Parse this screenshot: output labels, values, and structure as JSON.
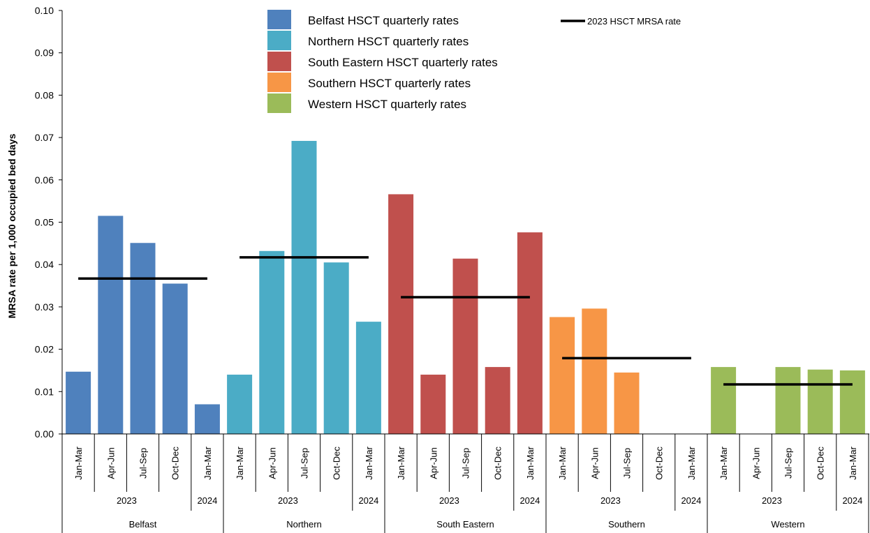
{
  "chart_data": {
    "type": "bar",
    "ylabel": "MRSA rate per 1,000 occupied bed days",
    "ylim": [
      0,
      0.1
    ],
    "yticks": [
      "0.00",
      "0.01",
      "0.02",
      "0.03",
      "0.04",
      "0.05",
      "0.06",
      "0.07",
      "0.08",
      "0.09",
      "0.10"
    ],
    "grid": false,
    "legend_position": "top-center",
    "legend": [
      {
        "label": "Belfast  HSCT quarterly rates",
        "color": "#4F81BD"
      },
      {
        "label": "Northern  HSCT quarterly rates",
        "color": "#4BACC6"
      },
      {
        "label": "South  Eastern HSCT quarterly rates",
        "color": "#C0504D"
      },
      {
        "label": "Southern  HSCT quarterly rates",
        "color": "#F79646"
      },
      {
        "label": " Western HSCT quarterly rates",
        "color": "#9BBB59"
      }
    ],
    "line_legend": "2023 HSCT MRSA rate",
    "line_color": "#000000",
    "quarters": [
      "Jan-Mar",
      "Apr-Jun",
      "Jul-Sep",
      "Oct-Dec",
      "Jan-Mar"
    ],
    "year_labels": [
      "2023",
      "2024"
    ],
    "groups": [
      {
        "name": "Belfast",
        "color": "#4F81BD",
        "values": [
          0.0147,
          0.0515,
          0.0451,
          0.0355,
          0.007
        ],
        "annual_rate": 0.0367
      },
      {
        "name": "Northern",
        "color": "#4BACC6",
        "values": [
          0.014,
          0.0432,
          0.0692,
          0.0405,
          0.0265
        ],
        "annual_rate": 0.0417
      },
      {
        "name": "South Eastern",
        "color": "#C0504D",
        "values": [
          0.0566,
          0.014,
          0.0414,
          0.0158,
          0.0476
        ],
        "annual_rate": 0.0323
      },
      {
        "name": "Southern",
        "color": "#F79646",
        "values": [
          0.0276,
          0.0296,
          0.0145,
          0,
          0
        ],
        "annual_rate": 0.0179
      },
      {
        "name": "Western",
        "color": "#9BBB59",
        "values": [
          0.0158,
          0,
          0.0158,
          0.0152,
          0.015
        ],
        "annual_rate": 0.0117
      }
    ]
  }
}
